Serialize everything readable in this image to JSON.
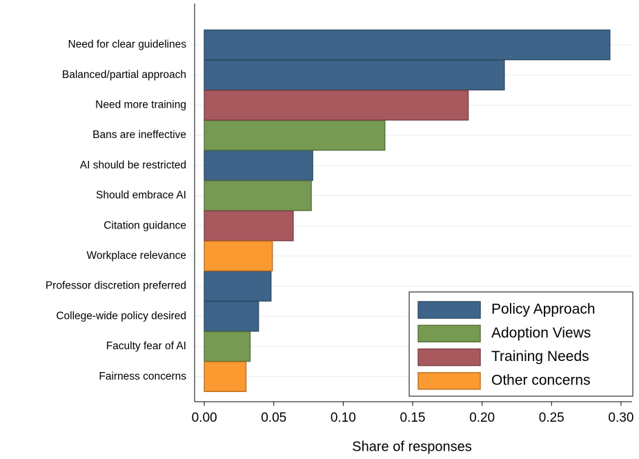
{
  "chart_data": {
    "type": "hbar",
    "xlabel": "Share of responses",
    "categories": [
      "Need for clear guidelines",
      "Balanced/partial approach",
      "Need more training",
      "Bans are ineffective",
      "AI should be restricted",
      "Should embrace AI",
      "Citation guidance",
      "Workplace relevance",
      "Professor discretion preferred",
      "College-wide policy desired",
      "Faculty fear of AI",
      "Fairness concerns"
    ],
    "series": [
      {
        "name": "Policy Approach",
        "color": "#3e6589",
        "values": [
          0.292,
          0.216,
          null,
          null,
          0.078,
          null,
          null,
          null,
          0.048,
          0.039,
          null,
          null
        ]
      },
      {
        "name": "Adoption Views",
        "color": "#779a53",
        "values": [
          null,
          null,
          null,
          0.13,
          null,
          0.077,
          null,
          null,
          null,
          null,
          0.033,
          null
        ]
      },
      {
        "name": "Training Needs",
        "color": "#a8595e",
        "values": [
          null,
          null,
          0.19,
          null,
          null,
          null,
          0.064,
          null,
          null,
          null,
          null,
          null
        ]
      },
      {
        "name": "Other concerns",
        "color": "#fb9a30",
        "values": [
          null,
          null,
          null,
          null,
          null,
          null,
          null,
          0.049,
          null,
          null,
          null,
          0.03
        ]
      }
    ],
    "xlim": [
      -0.007,
      0.308
    ],
    "xticks": [
      {
        "value": 0,
        "label": "0.00"
      },
      {
        "value": 0.05,
        "label": "0.05"
      },
      {
        "value": 0.1,
        "label": "0.10"
      },
      {
        "value": 0.15,
        "label": "0.15"
      },
      {
        "value": 0.2,
        "label": "0.20"
      },
      {
        "value": 0.25,
        "label": "0.25"
      },
      {
        "value": 0.3,
        "label": "0.30"
      }
    ],
    "grid": true,
    "legend": "lower right"
  }
}
